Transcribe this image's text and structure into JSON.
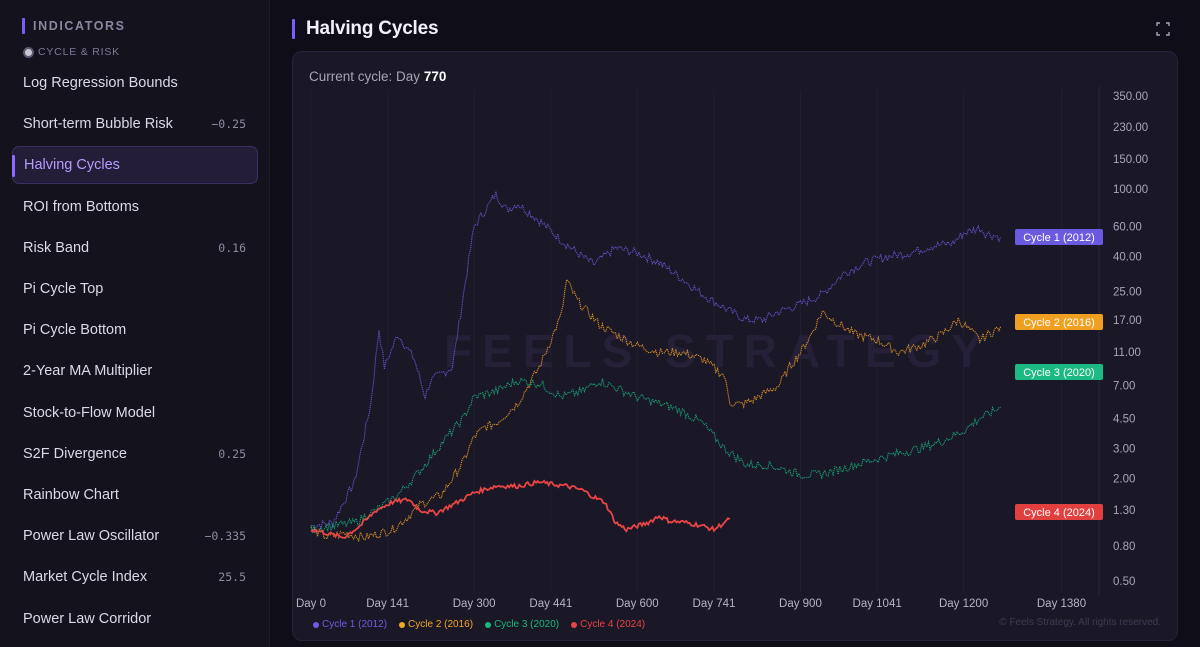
{
  "sidebar": {
    "header": "INDICATORS",
    "section": "CYCLE & RISK",
    "items": [
      {
        "label": "Log Regression Bounds",
        "value": ""
      },
      {
        "label": "Short-term Bubble Risk",
        "value": "−0.25"
      },
      {
        "label": "Halving Cycles",
        "value": "",
        "active": true
      },
      {
        "label": "ROI from Bottoms",
        "value": ""
      },
      {
        "label": "Risk Band",
        "value": "0.16"
      },
      {
        "label": "Pi Cycle Top",
        "value": ""
      },
      {
        "label": "Pi Cycle Bottom",
        "value": ""
      },
      {
        "label": "2-Year MA Multiplier",
        "value": ""
      },
      {
        "label": "Stock-to-Flow Model",
        "value": ""
      },
      {
        "label": "S2F Divergence",
        "value": "0.25"
      },
      {
        "label": "Rainbow Chart",
        "value": ""
      },
      {
        "label": "Power Law Oscillator",
        "value": "−0.335"
      },
      {
        "label": "Market Cycle Index",
        "value": "25.5"
      },
      {
        "label": "Power Law Corridor",
        "value": ""
      }
    ]
  },
  "header": {
    "title": "Halving Cycles",
    "expand_icon": "expand-icon"
  },
  "status": {
    "prefix": "Current cycle: Day",
    "day": "770"
  },
  "watermark": "FEELS STRATEGY",
  "copyright": "© Feels Strategy. All rights reserved.",
  "colors": {
    "accent": "#7a5cff",
    "cycle1": "#6d5fe0",
    "cycle2": "#f5a623",
    "cycle3": "#18b87f",
    "cycle4": "#e84545"
  },
  "chart_data": {
    "type": "line",
    "scale": "log",
    "x_ticks": [
      {
        "value": 0,
        "label": "Day 0"
      },
      {
        "value": 141,
        "label": "Day 141"
      },
      {
        "value": 300,
        "label": "Day 300"
      },
      {
        "value": 441,
        "label": "Day 441"
      },
      {
        "value": 600,
        "label": "Day 600"
      },
      {
        "value": 741,
        "label": "Day 741"
      },
      {
        "value": 900,
        "label": "Day 900"
      },
      {
        "value": 1041,
        "label": "Day 1041"
      },
      {
        "value": 1200,
        "label": "Day 1200"
      },
      {
        "value": 1380,
        "label": "Day 1380"
      }
    ],
    "y_ticks": [
      "350.00",
      "230.00",
      "150.00",
      "100.00",
      "60.00",
      "40.00",
      "25.00",
      "17.00",
      "11.00",
      "7.00",
      "4.50",
      "3.00",
      "2.00",
      "1.30",
      "0.80",
      "0.50"
    ],
    "xlim": [
      0,
      1460
    ],
    "ylim": [
      0.43,
      380
    ],
    "series": [
      {
        "name": "Cycle 1 (2012)",
        "color": "#6d5fe0",
        "label_color": "#6a5ae0",
        "points": [
          [
            0,
            1.05
          ],
          [
            40,
            1.1
          ],
          [
            80,
            1.9
          ],
          [
            110,
            5.5
          ],
          [
            125,
            15
          ],
          [
            135,
            9
          ],
          [
            160,
            14
          ],
          [
            190,
            10
          ],
          [
            210,
            6
          ],
          [
            220,
            7.5
          ],
          [
            260,
            9
          ],
          [
            290,
            38
          ],
          [
            300,
            60
          ],
          [
            340,
            93
          ],
          [
            360,
            75
          ],
          [
            380,
            82
          ],
          [
            420,
            65
          ],
          [
            460,
            50
          ],
          [
            490,
            42
          ],
          [
            520,
            36
          ],
          [
            560,
            45
          ],
          [
            600,
            42
          ],
          [
            640,
            37
          ],
          [
            680,
            30
          ],
          [
            720,
            24
          ],
          [
            760,
            20
          ],
          [
            800,
            17
          ],
          [
            830,
            17
          ],
          [
            860,
            19
          ],
          [
            900,
            21
          ],
          [
            940,
            24
          ],
          [
            980,
            32
          ],
          [
            1020,
            37
          ],
          [
            1060,
            40
          ],
          [
            1100,
            42
          ],
          [
            1140,
            46
          ],
          [
            1180,
            48
          ],
          [
            1200,
            55
          ],
          [
            1230,
            59
          ],
          [
            1240,
            55
          ],
          [
            1268,
            52
          ]
        ]
      },
      {
        "name": "Cycle 2 (2016)",
        "color": "#f5a623",
        "label_color": "#f0a020",
        "points": [
          [
            0,
            1.0
          ],
          [
            30,
            0.9
          ],
          [
            60,
            0.95
          ],
          [
            100,
            0.9
          ],
          [
            150,
            1.0
          ],
          [
            180,
            1.2
          ],
          [
            200,
            1.4
          ],
          [
            240,
            1.6
          ],
          [
            260,
            2.0
          ],
          [
            280,
            2.5
          ],
          [
            300,
            3.5
          ],
          [
            320,
            4.0
          ],
          [
            340,
            4.2
          ],
          [
            380,
            5.5
          ],
          [
            420,
            9
          ],
          [
            460,
            18
          ],
          [
            470,
            29
          ],
          [
            490,
            22
          ],
          [
            530,
            16
          ],
          [
            560,
            14
          ],
          [
            600,
            12
          ],
          [
            640,
            11
          ],
          [
            680,
            11
          ],
          [
            720,
            10
          ],
          [
            760,
            8
          ],
          [
            770,
            5.6
          ],
          [
            790,
            5.4
          ],
          [
            810,
            5.7
          ],
          [
            830,
            6.2
          ],
          [
            860,
            7
          ],
          [
            880,
            9
          ],
          [
            900,
            11
          ],
          [
            920,
            14
          ],
          [
            940,
            19
          ],
          [
            960,
            17
          ],
          [
            1000,
            14
          ],
          [
            1040,
            13
          ],
          [
            1080,
            11
          ],
          [
            1120,
            12
          ],
          [
            1160,
            14
          ],
          [
            1190,
            17
          ],
          [
            1200,
            16
          ],
          [
            1230,
            13
          ],
          [
            1268,
            15.5
          ]
        ]
      },
      {
        "name": "Cycle 3 (2020)",
        "color": "#18b87f",
        "label_color": "#1cb982",
        "points": [
          [
            0,
            1.0
          ],
          [
            40,
            1.05
          ],
          [
            80,
            1.1
          ],
          [
            120,
            1.3
          ],
          [
            160,
            1.6
          ],
          [
            200,
            2.2
          ],
          [
            240,
            3.2
          ],
          [
            280,
            4.5
          ],
          [
            300,
            6
          ],
          [
            340,
            6.5
          ],
          [
            380,
            7.5
          ],
          [
            420,
            7.2
          ],
          [
            460,
            6
          ],
          [
            500,
            6.5
          ],
          [
            530,
            7.5
          ],
          [
            560,
            6.8
          ],
          [
            600,
            6
          ],
          [
            640,
            5.5
          ],
          [
            680,
            5
          ],
          [
            720,
            4.2
          ],
          [
            760,
            3
          ],
          [
            800,
            2.4
          ],
          [
            840,
            2.4
          ],
          [
            880,
            2.2
          ],
          [
            900,
            2.1
          ],
          [
            930,
            2.1
          ],
          [
            960,
            2.2
          ],
          [
            1000,
            2.4
          ],
          [
            1040,
            2.6
          ],
          [
            1080,
            2.8
          ],
          [
            1120,
            3.0
          ],
          [
            1160,
            3.3
          ],
          [
            1200,
            3.8
          ],
          [
            1230,
            4.5
          ],
          [
            1268,
            5.2
          ]
        ]
      },
      {
        "name": "Cycle 4 (2024)",
        "color": "#e84545",
        "label_color": "#e23f3f",
        "points": [
          [
            0,
            1.0
          ],
          [
            30,
            0.95
          ],
          [
            60,
            0.9
          ],
          [
            90,
            1.05
          ],
          [
            120,
            1.3
          ],
          [
            150,
            1.45
          ],
          [
            180,
            1.5
          ],
          [
            200,
            1.3
          ],
          [
            230,
            1.25
          ],
          [
            270,
            1.45
          ],
          [
            300,
            1.65
          ],
          [
            340,
            1.8
          ],
          [
            380,
            1.8
          ],
          [
            420,
            1.9
          ],
          [
            440,
            1.85
          ],
          [
            470,
            1.8
          ],
          [
            500,
            1.7
          ],
          [
            520,
            1.55
          ],
          [
            540,
            1.45
          ],
          [
            560,
            1.1
          ],
          [
            580,
            1.0
          ],
          [
            600,
            1.05
          ],
          [
            620,
            1.1
          ],
          [
            640,
            1.2
          ],
          [
            660,
            1.12
          ],
          [
            690,
            1.1
          ],
          [
            720,
            1.05
          ],
          [
            741,
            1.0
          ],
          [
            760,
            1.1
          ],
          [
            770,
            1.15
          ]
        ]
      }
    ]
  }
}
